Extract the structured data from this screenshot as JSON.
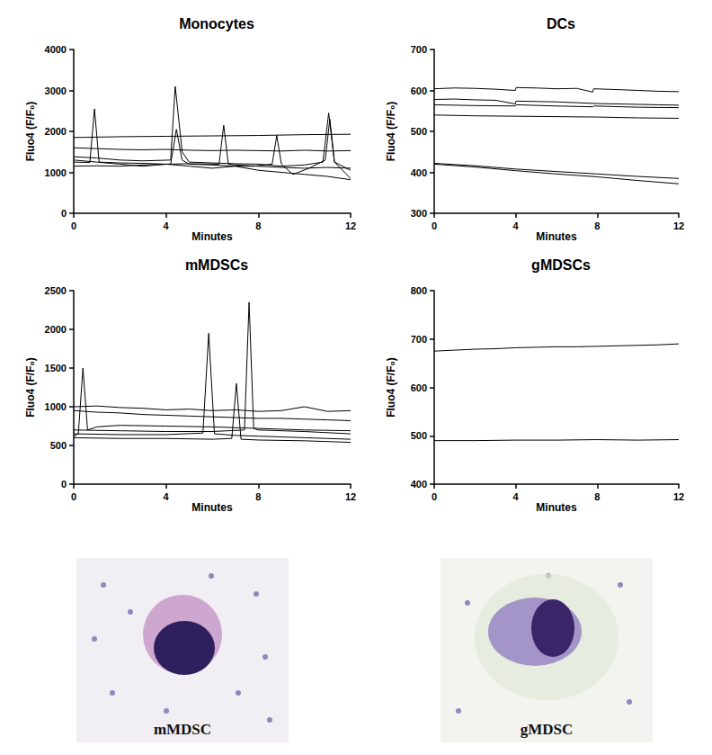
{
  "chart_data": [
    {
      "type": "line",
      "title": "Monocytes",
      "x_label": "Minutes",
      "y_label": "Fluo4 (F/F₀)",
      "color": "#000000",
      "grid": false,
      "xlim": [
        0,
        12
      ],
      "xticks": [
        0,
        4,
        8,
        12
      ],
      "ylim": [
        0,
        4000
      ],
      "yticks": [
        0,
        1000,
        2000,
        3000,
        4000
      ],
      "series": [
        {
          "x": [
            0,
            2,
            4,
            6,
            8,
            10,
            12
          ],
          "values": [
            1850,
            1870,
            1880,
            1890,
            1900,
            1920,
            1930
          ]
        },
        {
          "x": [
            0,
            1,
            2,
            3,
            4,
            5,
            6,
            7,
            8,
            9,
            10,
            11,
            12
          ],
          "values": [
            1600,
            1580,
            1560,
            1550,
            1560,
            1540,
            1530,
            1540,
            1530,
            1520,
            1540,
            1520,
            1530
          ]
        },
        {
          "x": [
            0,
            1,
            2,
            3,
            4.2,
            4.4,
            4.7,
            5,
            6,
            7,
            8,
            9,
            10,
            10.8,
            11.05,
            11.3,
            12
          ],
          "values": [
            1380,
            1350,
            1300,
            1280,
            1300,
            3100,
            1500,
            1250,
            1230,
            1210,
            1200,
            1150,
            1180,
            1250,
            2450,
            1250,
            1050
          ]
        },
        {
          "x": [
            0,
            0.7,
            0.9,
            1.1,
            2,
            3,
            4,
            5,
            6.3,
            6.5,
            6.7,
            7,
            8,
            9,
            10,
            11,
            12
          ],
          "values": [
            1250,
            1240,
            2550,
            1250,
            1230,
            1220,
            1200,
            1210,
            1200,
            2150,
            1200,
            1180,
            1150,
            1120,
            1100,
            1120,
            1100
          ]
        },
        {
          "x": [
            0,
            1,
            2,
            3,
            4.2,
            4.45,
            4.7,
            5,
            6,
            7,
            7.8,
            8.6,
            8.8,
            9.0,
            9.5,
            10.2,
            10.9,
            11.1,
            11.3,
            12
          ],
          "values": [
            1150,
            1160,
            1150,
            1180,
            1200,
            2050,
            1300,
            1200,
            1180,
            1150,
            1150,
            1200,
            1900,
            1200,
            950,
            1100,
            1300,
            2300,
            1250,
            850
          ]
        },
        {
          "x": [
            0,
            1,
            2,
            3,
            4,
            5,
            6,
            7,
            8,
            9,
            10,
            11,
            12
          ],
          "values": [
            1300,
            1250,
            1200,
            1150,
            1200,
            1150,
            1100,
            1150,
            1050,
            1000,
            950,
            900,
            820
          ]
        }
      ]
    },
    {
      "type": "line",
      "title": "DCs",
      "x_label": "Minutes",
      "y_label": "Fluo4 (F/F₀)",
      "color": "#000000",
      "grid": false,
      "xlim": [
        0,
        12
      ],
      "xticks": [
        0,
        4,
        8,
        12
      ],
      "ylim": [
        300,
        700
      ],
      "yticks": [
        300,
        400,
        500,
        600,
        700
      ],
      "series": [
        {
          "x": [
            0,
            1,
            2,
            3,
            3.98,
            4.02,
            5,
            6,
            7,
            7.78,
            7.82,
            9,
            10,
            11,
            12
          ],
          "values": [
            604,
            606,
            605,
            603,
            600,
            607,
            606,
            604,
            605,
            596,
            604,
            602,
            600,
            598,
            597
          ]
        },
        {
          "x": [
            0,
            1,
            2,
            3,
            3.98,
            4.02,
            5,
            6,
            7,
            8,
            9,
            10,
            11,
            12
          ],
          "values": [
            578,
            579,
            577,
            576,
            567,
            574,
            573,
            572,
            570,
            568,
            567,
            566,
            565,
            564
          ]
        },
        {
          "x": [
            0,
            2,
            3.98,
            4.02,
            6,
            7.78,
            7.82,
            10,
            12
          ],
          "values": [
            565,
            563,
            562,
            565,
            562,
            560,
            562,
            559,
            558
          ]
        },
        {
          "x": [
            0,
            2,
            4,
            6,
            8,
            10,
            12
          ],
          "values": [
            540,
            538,
            537,
            536,
            535,
            533,
            532
          ]
        },
        {
          "x": [
            0,
            2,
            4,
            6,
            8,
            10,
            12
          ],
          "values": [
            422,
            416,
            408,
            402,
            396,
            390,
            385
          ]
        },
        {
          "x": [
            0,
            2,
            4,
            6,
            8,
            10,
            12
          ],
          "values": [
            420,
            413,
            404,
            396,
            389,
            380,
            372
          ]
        }
      ]
    },
    {
      "type": "line",
      "title": "mMDSCs",
      "x_label": "Minutes",
      "y_label": "Fluo4 (F/F₀)",
      "color": "#000000",
      "grid": false,
      "xlim": [
        0,
        12
      ],
      "xticks": [
        0,
        4,
        8,
        12
      ],
      "ylim": [
        0,
        2500
      ],
      "yticks": [
        0,
        500,
        1000,
        1500,
        2000,
        2500
      ],
      "series": [
        {
          "x": [
            0,
            1,
            2,
            3,
            4,
            5,
            6,
            7,
            8,
            9,
            10,
            11,
            12
          ],
          "values": [
            1000,
            1010,
            990,
            980,
            960,
            970,
            950,
            960,
            940,
            950,
            1000,
            940,
            950
          ]
        },
        {
          "x": [
            0,
            1,
            2,
            3,
            4,
            5,
            6,
            7,
            8,
            9,
            10,
            11,
            12
          ],
          "values": [
            950,
            930,
            920,
            900,
            890,
            880,
            870,
            860,
            850,
            850,
            840,
            830,
            820
          ]
        },
        {
          "x": [
            0,
            0.2,
            0.4,
            0.6,
            1,
            2,
            4,
            6,
            8,
            10,
            12
          ],
          "values": [
            620,
            650,
            1500,
            700,
            740,
            760,
            750,
            740,
            720,
            700,
            690
          ]
        },
        {
          "x": [
            0,
            2,
            4,
            5.6,
            5.85,
            6.1,
            7,
            8,
            10,
            12
          ],
          "values": [
            650,
            640,
            640,
            660,
            1950,
            650,
            630,
            620,
            600,
            580
          ]
        },
        {
          "x": [
            0,
            2,
            4,
            6,
            6.85,
            7.05,
            7.25,
            8,
            10,
            12
          ],
          "values": [
            600,
            590,
            590,
            580,
            590,
            1300,
            580,
            570,
            560,
            540
          ]
        },
        {
          "x": [
            0,
            2,
            4,
            6,
            7.4,
            7.6,
            7.8,
            8,
            10,
            12
          ],
          "values": [
            700,
            690,
            680,
            680,
            700,
            2350,
            720,
            700,
            680,
            650
          ]
        }
      ]
    },
    {
      "type": "line",
      "title": "gMDSCs",
      "x_label": "Minutes",
      "y_label": "Fluo4 (F/F₀)",
      "color": "#000000",
      "grid": false,
      "xlim": [
        0,
        12
      ],
      "xticks": [
        0,
        4,
        8,
        12
      ],
      "ylim": [
        400,
        800
      ],
      "yticks": [
        400,
        500,
        600,
        700,
        800
      ],
      "series": [
        {
          "x": [
            0,
            1,
            2,
            3,
            4,
            5,
            6,
            7,
            8,
            9,
            10,
            11,
            12
          ],
          "values": [
            675,
            677,
            679,
            680,
            682,
            683,
            684,
            684,
            685,
            686,
            687,
            688,
            690
          ]
        },
        {
          "x": [
            0,
            2,
            4,
            6,
            8,
            10,
            12
          ],
          "values": [
            490,
            490,
            491,
            491,
            492,
            491,
            492
          ]
        }
      ]
    }
  ],
  "images": [
    {
      "label": "mMDSC"
    },
    {
      "label": "gMDSC"
    }
  ]
}
